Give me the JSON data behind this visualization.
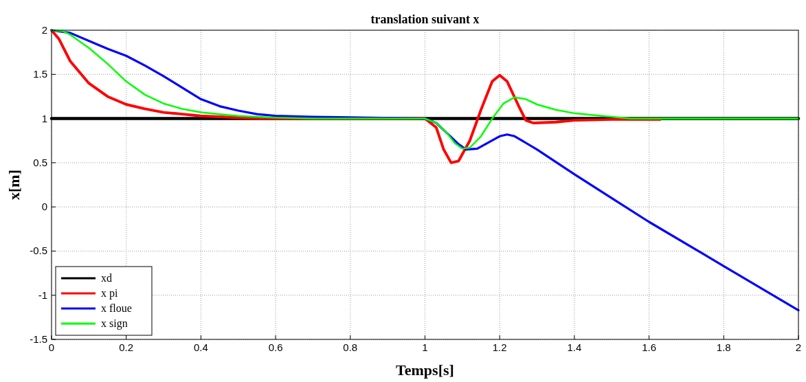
{
  "chart_data": {
    "type": "line",
    "title": "translation suivant x",
    "xlabel": "Temps[s]",
    "ylabel": "x[m]",
    "xlim": [
      0,
      2
    ],
    "xticks": [
      0,
      0.2,
      0.4,
      0.6,
      0.8,
      1,
      1.2,
      1.4,
      1.6,
      1.8,
      2
    ],
    "ylim": [
      -1.5,
      2
    ],
    "yticks": [
      -1.5,
      -1,
      -0.5,
      0,
      0.5,
      1,
      1.5,
      2
    ],
    "grid": true,
    "legend": "bottom left",
    "marker": "none",
    "line_style": "solid",
    "series": [
      {
        "name": "xd",
        "color": "#000000",
        "x": [
          0,
          2
        ],
        "values": [
          1,
          1
        ]
      },
      {
        "name": "x pi",
        "color": "#ff0000",
        "x": [
          0,
          0.02,
          0.05,
          0.1,
          0.15,
          0.2,
          0.25,
          0.3,
          0.35,
          0.4,
          0.5,
          0.6,
          1,
          1.03,
          1.05,
          1.07,
          1.09,
          1.12,
          1.15,
          1.18,
          1.2,
          1.22,
          1.25,
          1.27,
          1.29,
          1.35,
          1.4,
          1.5,
          1.63
        ],
        "values": [
          2,
          1.9,
          1.65,
          1.4,
          1.25,
          1.16,
          1.11,
          1.07,
          1.05,
          1.03,
          1.01,
          1,
          1,
          0.9,
          0.65,
          0.5,
          0.52,
          0.75,
          1.1,
          1.42,
          1.49,
          1.42,
          1.15,
          0.98,
          0.95,
          0.96,
          0.98,
          0.99,
          0.99
        ]
      },
      {
        "name": "x floue",
        "color": "#0000ff",
        "x": [
          0,
          0.05,
          0.1,
          0.15,
          0.2,
          0.25,
          0.3,
          0.35,
          0.4,
          0.45,
          0.5,
          0.55,
          0.6,
          0.7,
          1,
          1.03,
          1.06,
          1.09,
          1.11,
          1.14,
          1.17,
          1.2,
          1.22,
          1.24,
          1.3,
          1.4,
          1.5,
          1.6,
          1.8,
          2
        ],
        "values": [
          2,
          1.97,
          1.88,
          1.79,
          1.71,
          1.6,
          1.48,
          1.35,
          1.22,
          1.14,
          1.09,
          1.05,
          1.03,
          1.02,
          1,
          0.95,
          0.83,
          0.71,
          0.65,
          0.66,
          0.73,
          0.8,
          0.82,
          0.8,
          0.65,
          0.37,
          0.1,
          -0.17,
          -0.67,
          -1.17
        ]
      },
      {
        "name": "x sign",
        "color": "#00ff00",
        "x": [
          0,
          0.03,
          0.05,
          0.1,
          0.15,
          0.2,
          0.25,
          0.3,
          0.35,
          0.4,
          0.45,
          0.5,
          0.6,
          0.7,
          1,
          1.03,
          1.06,
          1.08,
          1.1,
          1.12,
          1.15,
          1.18,
          1.21,
          1.24,
          1.27,
          1.3,
          1.35,
          1.4,
          1.45,
          1.5,
          1.55,
          2
        ],
        "values": [
          2,
          1.99,
          1.95,
          1.8,
          1.62,
          1.42,
          1.27,
          1.17,
          1.11,
          1.07,
          1.05,
          1.03,
          1.01,
          1,
          1,
          0.95,
          0.83,
          0.72,
          0.66,
          0.67,
          0.8,
          1,
          1.17,
          1.24,
          1.22,
          1.16,
          1.1,
          1.06,
          1.04,
          1.02,
          1,
          1
        ]
      }
    ]
  }
}
